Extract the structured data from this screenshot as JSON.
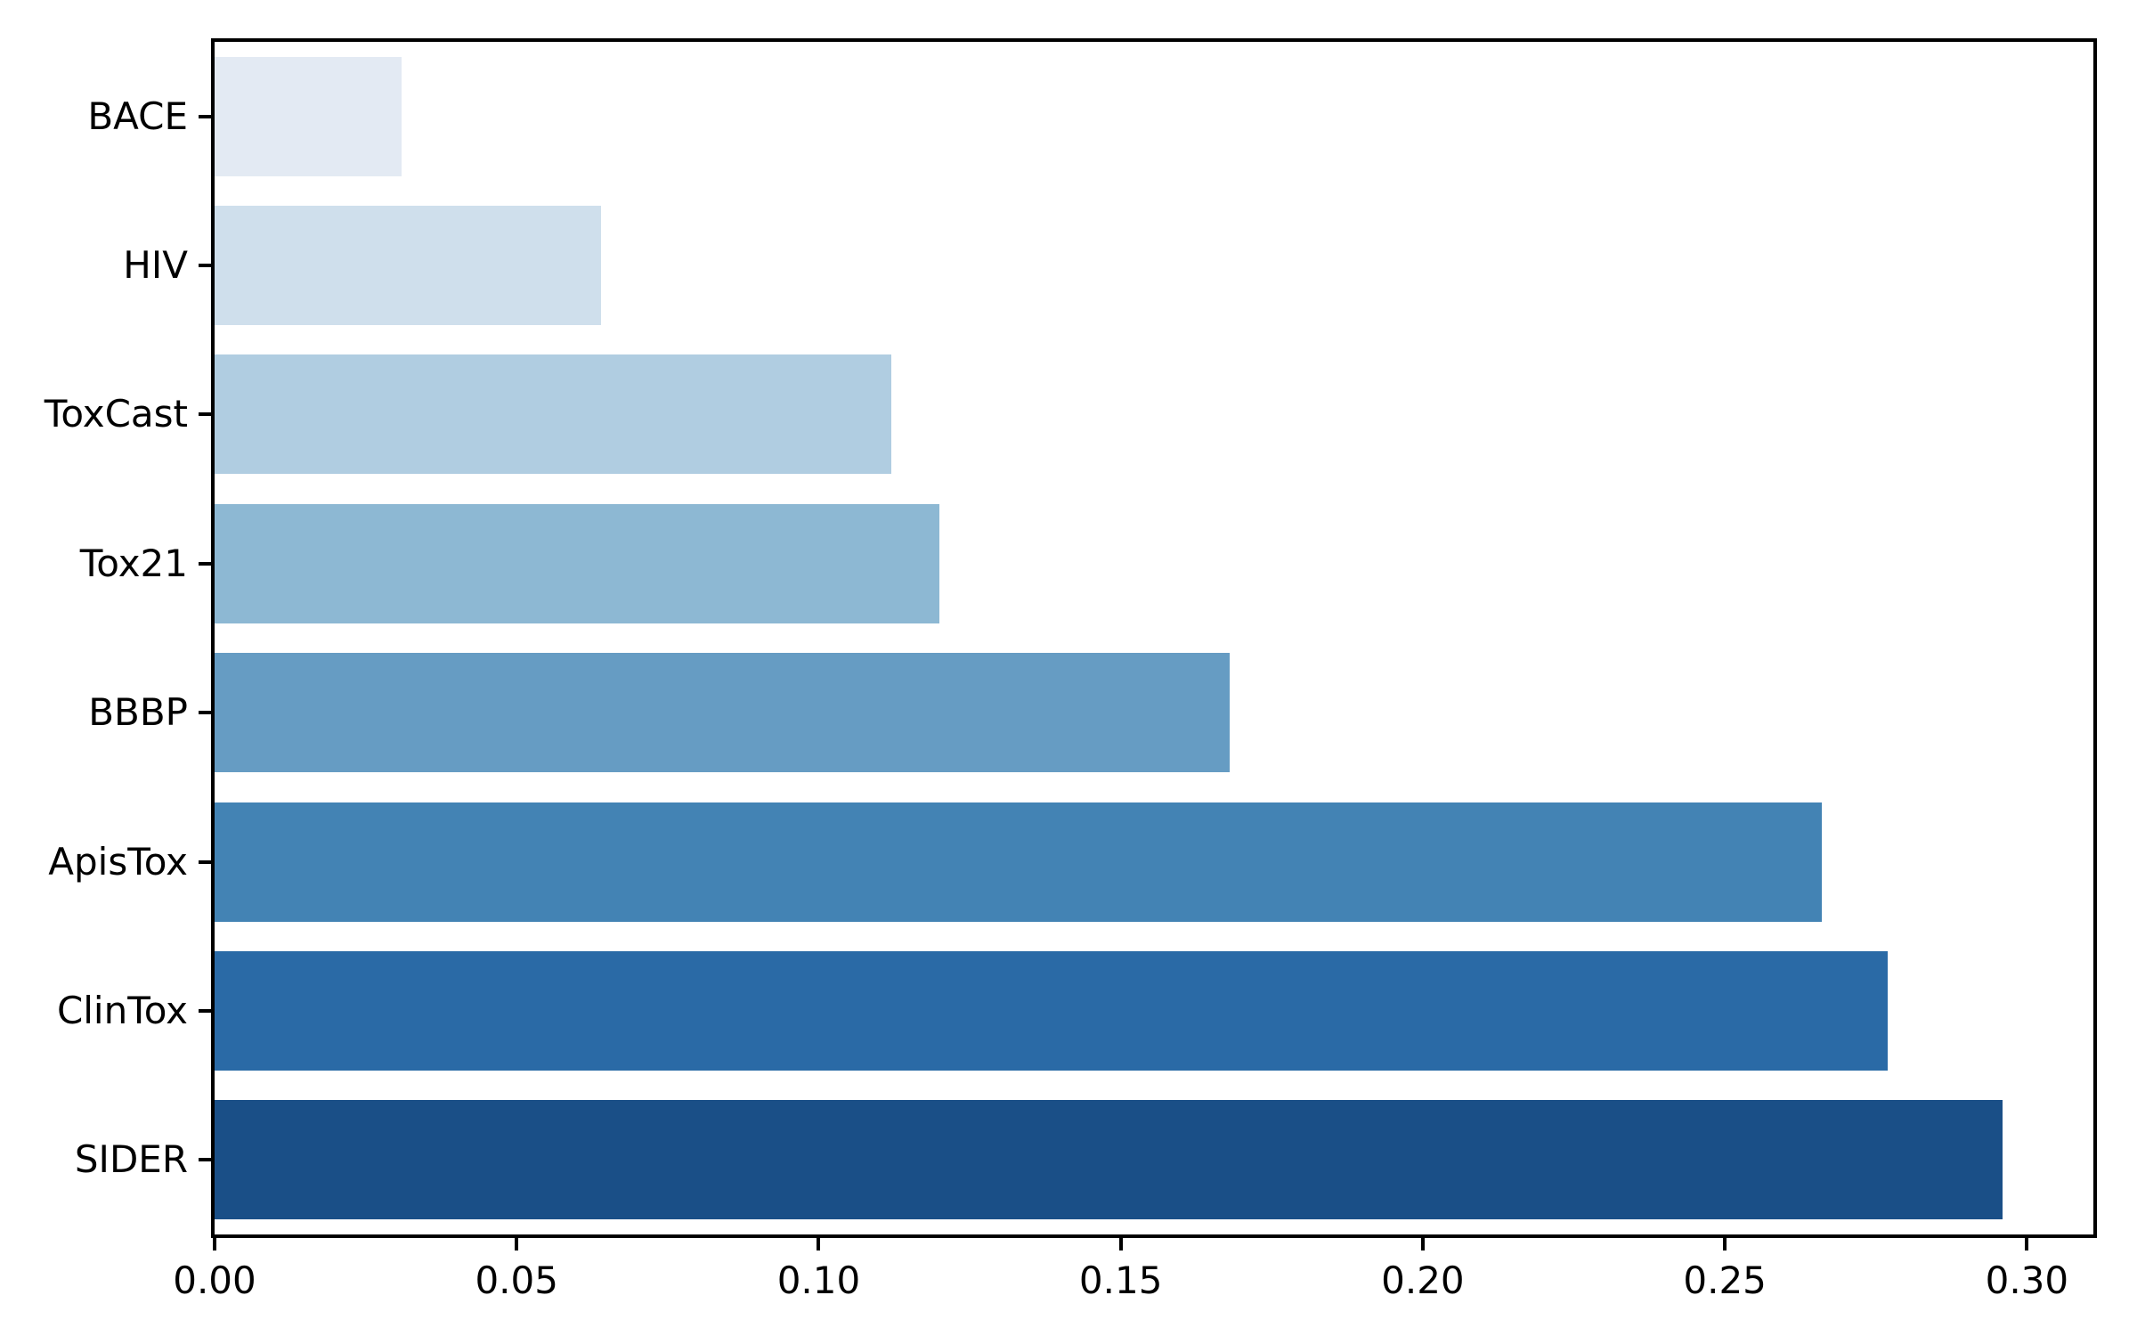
{
  "figure": {
    "background_color": "#ffffff",
    "axis_color": "#000000",
    "text_color": "#000000"
  },
  "chart_data": {
    "type": "bar",
    "orientation": "horizontal",
    "title": "",
    "xlabel": "",
    "ylabel": "",
    "categories": [
      "BACE",
      "HIV",
      "ToxCast",
      "Tox21",
      "BBBP",
      "ApisTox",
      "ClinTox",
      "SIDER"
    ],
    "values": [
      0.031,
      0.064,
      0.112,
      0.12,
      0.168,
      0.266,
      0.277,
      0.296
    ],
    "bar_colors": [
      "#e3eaf3",
      "#cfdfec",
      "#b0cde1",
      "#8db8d3",
      "#669cc3",
      "#4383b4",
      "#2a6aa6",
      "#1a4f87"
    ],
    "colormap": "Blues light-to-dark",
    "x_tick_labels": [
      "0.00",
      "0.05",
      "0.10",
      "0.15",
      "0.20",
      "0.25",
      "0.30"
    ],
    "x_tick_values": [
      0.0,
      0.05,
      0.1,
      0.15,
      0.2,
      0.25,
      0.3
    ],
    "xlim": [
      0,
      0.311
    ],
    "bar_band_fraction": 0.8,
    "grid": false,
    "legend": false
  }
}
